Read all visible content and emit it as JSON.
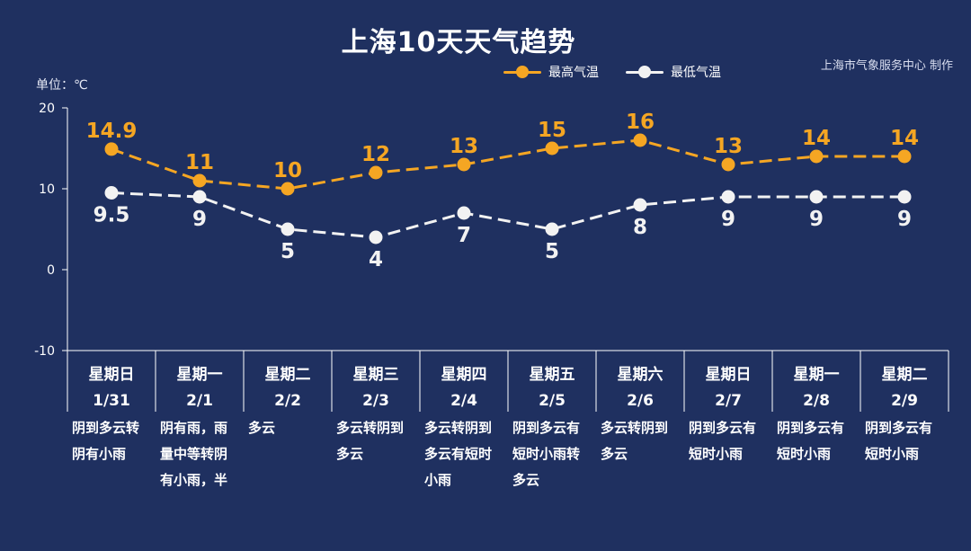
{
  "title": "上海10天天气趋势",
  "credit": "上海市气象服务中心 制作",
  "unit_label": "单位：℃",
  "colors": {
    "high": "#f5a623",
    "low": "#f2f2f2",
    "background": "#1f3060",
    "axis": "#ffffff"
  },
  "legend": {
    "high": "最高气温",
    "low": "最低气温"
  },
  "chart_data": {
    "type": "line",
    "title": "上海10天天气趋势",
    "ylabel": "单位：℃",
    "ylim": [
      -10,
      20
    ],
    "yticks": [
      -10,
      0,
      10,
      20
    ],
    "categories": [
      "星期日 1/31",
      "星期一 2/1",
      "星期二 2/2",
      "星期三 2/3",
      "星期四 2/4",
      "星期五 2/5",
      "星期六 2/6",
      "星期日 2/7",
      "星期一 2/8",
      "星期二 2/9"
    ],
    "series": [
      {
        "name": "最高气温",
        "values": [
          14.9,
          11,
          10,
          12,
          13,
          15,
          16,
          13,
          14,
          14
        ],
        "labels": [
          "14.9",
          "11",
          "10",
          "12",
          "13",
          "15",
          "16",
          "13",
          "14",
          "14"
        ]
      },
      {
        "name": "最低气温",
        "values": [
          9.5,
          9,
          5,
          4,
          7,
          5,
          8,
          9,
          9,
          9
        ],
        "labels": [
          "9.5",
          "9",
          "5",
          "4",
          "7",
          "5",
          "8",
          "9",
          "9",
          "9"
        ]
      }
    ],
    "grid": false,
    "legend_position": "top-right"
  },
  "days": [
    {
      "weekday": "星期日",
      "date": "1/31",
      "desc": "阴到多云转阴有小雨"
    },
    {
      "weekday": "星期一",
      "date": "2/1",
      "desc": "阴有雨，雨量中等转阴有小雨，半"
    },
    {
      "weekday": "星期二",
      "date": "2/2",
      "desc": "多云"
    },
    {
      "weekday": "星期三",
      "date": "2/3",
      "desc": "多云转阴到多云"
    },
    {
      "weekday": "星期四",
      "date": "2/4",
      "desc": "多云转阴到多云有短时小雨"
    },
    {
      "weekday": "星期五",
      "date": "2/5",
      "desc": "阴到多云有短时小雨转多云"
    },
    {
      "weekday": "星期六",
      "date": "2/6",
      "desc": "多云转阴到多云"
    },
    {
      "weekday": "星期日",
      "date": "2/7",
      "desc": "阴到多云有短时小雨"
    },
    {
      "weekday": "星期一",
      "date": "2/8",
      "desc": "阴到多云有短时小雨"
    },
    {
      "weekday": "星期二",
      "date": "2/9",
      "desc": "阴到多云有短时小雨"
    }
  ]
}
